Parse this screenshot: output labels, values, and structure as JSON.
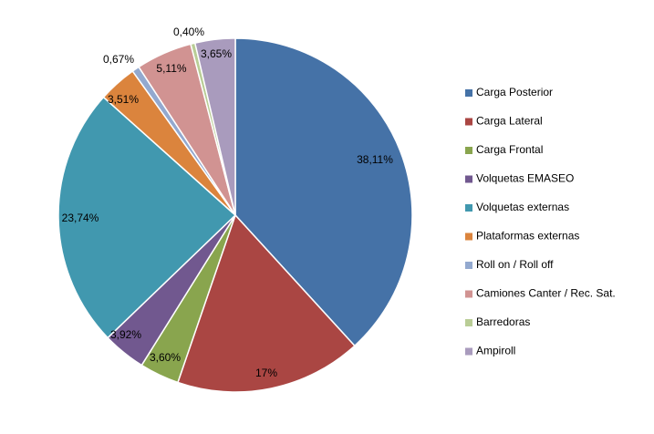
{
  "chart_data": {
    "type": "pie",
    "title": "",
    "legend_position": "right",
    "slices": [
      {
        "name": "Carga Posterior",
        "value": 38.11,
        "label": "38,11%",
        "color": "#4572A7"
      },
      {
        "name": "Carga Lateral",
        "value": 17.0,
        "label": "17%",
        "color": "#AA4643"
      },
      {
        "name": "Carga Frontal",
        "value": 3.6,
        "label": "3,60%",
        "color": "#89A54E"
      },
      {
        "name": "Volquetas EMASEO",
        "value": 3.92,
        "label": "3,92%",
        "color": "#71588F"
      },
      {
        "name": "Volquetas externas",
        "value": 23.74,
        "label": "23,74%",
        "color": "#4198AF"
      },
      {
        "name": "Plataformas externas",
        "value": 3.51,
        "label": "3,51%",
        "color": "#DB843D"
      },
      {
        "name": "Roll on / Roll off",
        "value": 0.67,
        "label": "0,67%",
        "color": "#93A9CF"
      },
      {
        "name": "Camiones Canter / Rec. Sat.",
        "value": 5.11,
        "label": "5,11%",
        "color": "#D19392"
      },
      {
        "name": "Barredoras",
        "value": 0.4,
        "label": "0,40%",
        "color": "#B9CD96"
      },
      {
        "name": "Ampiroll",
        "value": 3.65,
        "label": "3,65%",
        "color": "#A99BBD"
      }
    ]
  }
}
